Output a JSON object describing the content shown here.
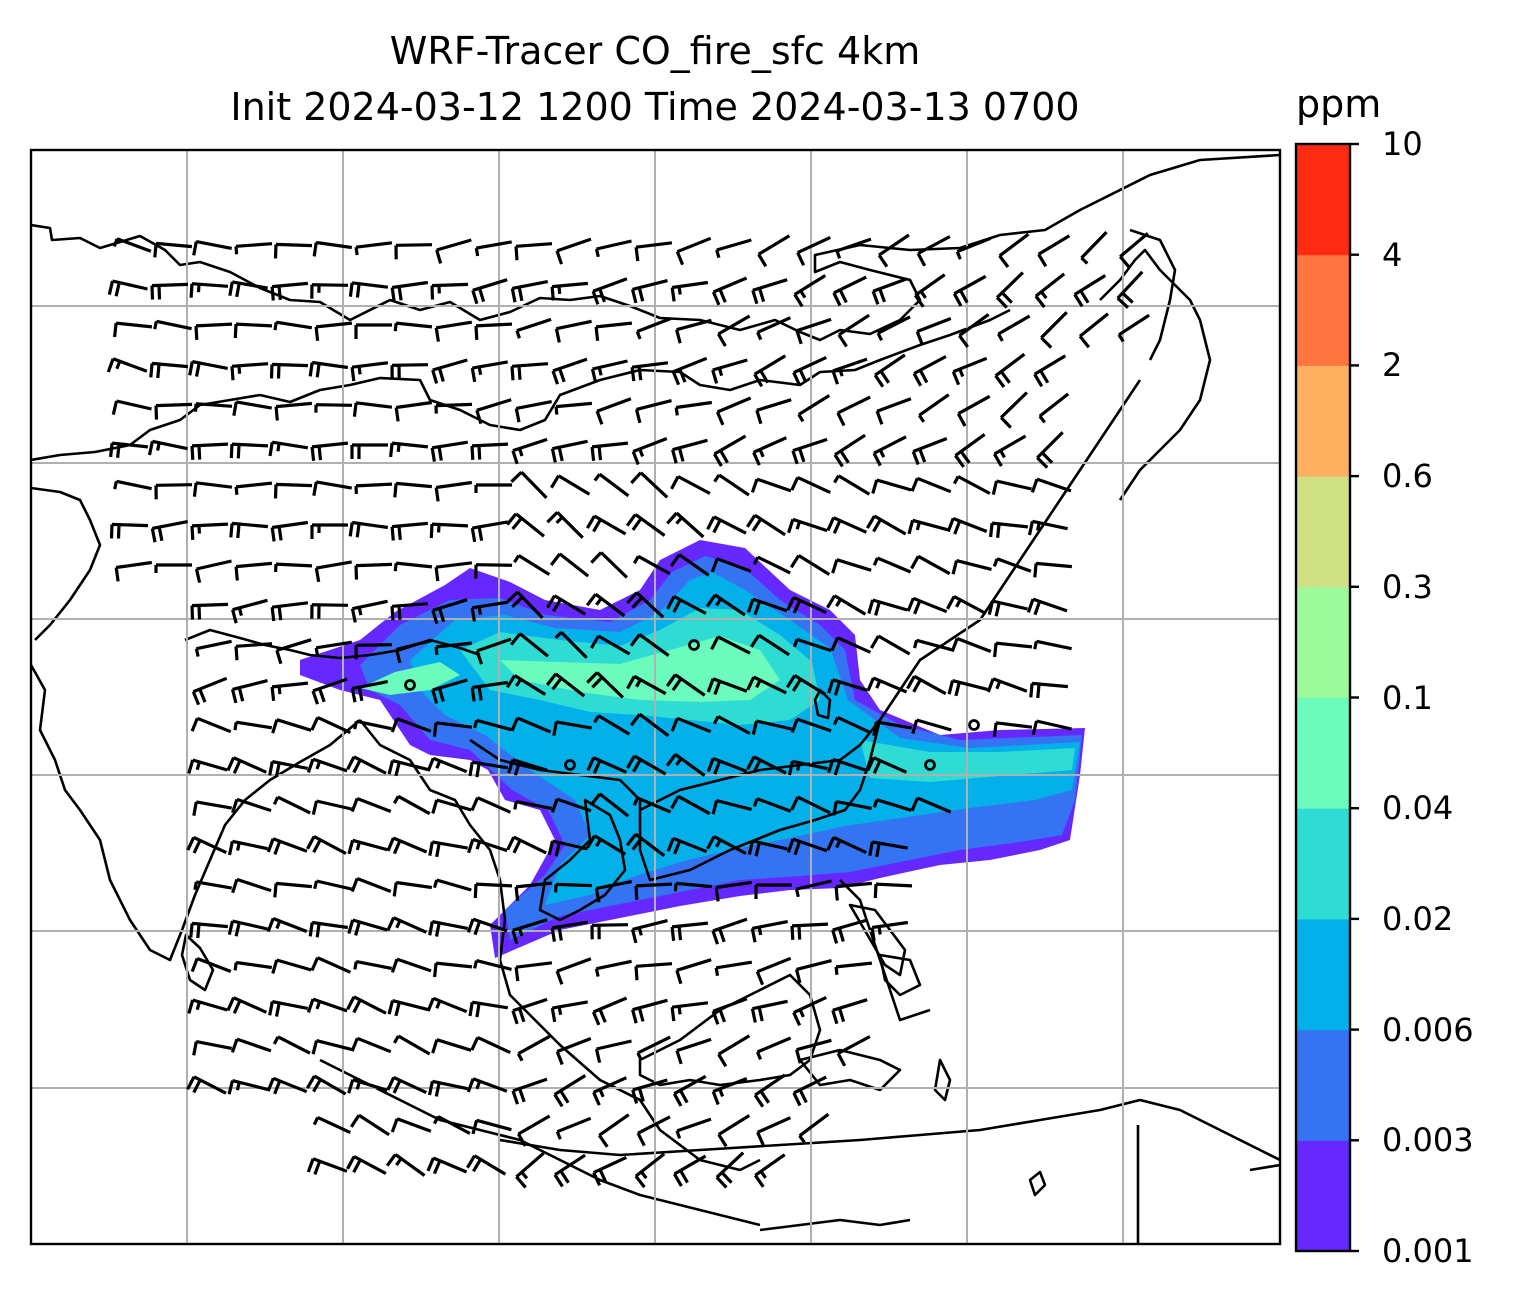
{
  "title": {
    "line1": "WRF-Tracer CO_fire_sfc 4km",
    "line2": "Init 2024-03-12 1200 Time 2024-03-13 0700"
  },
  "colorbar": {
    "units": "ppm",
    "levels": [
      "0.001",
      "0.003",
      "0.006",
      "0.02",
      "0.04",
      "0.1",
      "0.3",
      "0.6",
      "2",
      "4",
      "10"
    ],
    "colors": [
      "#6529ff",
      "#3474f2",
      "#03b0ea",
      "#2fdcd4",
      "#6afbbd",
      "#9cfa9a",
      "#cfe084",
      "#fcb060",
      "#fe7540",
      "#ff2a14"
    ]
  },
  "map": {
    "gridlines": true,
    "gridline_color": "#b0b0b0",
    "coastline_color": "#000000",
    "wind_barbs": true
  }
}
